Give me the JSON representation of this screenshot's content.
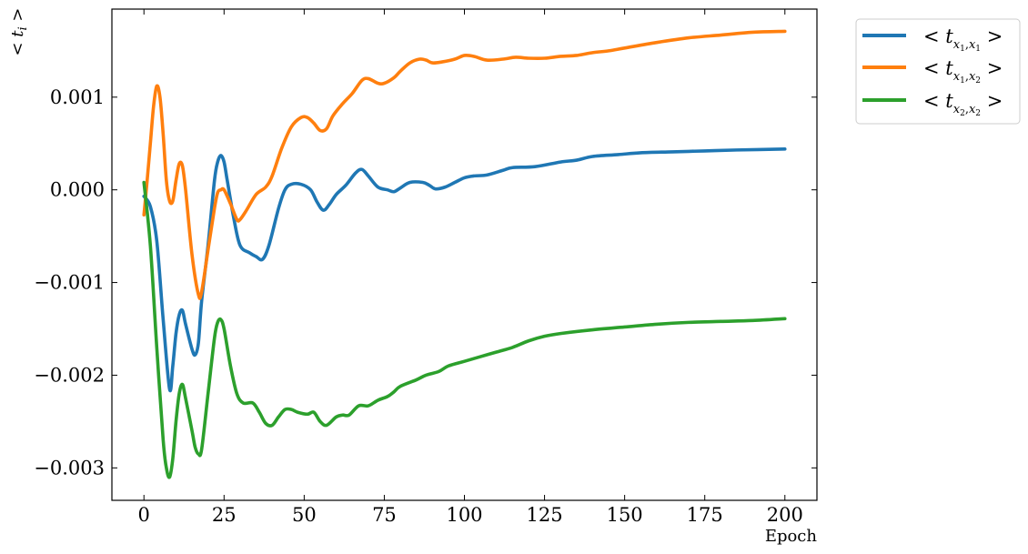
{
  "chart_data": {
    "type": "line",
    "xlabel": "Epoch",
    "ylabel": "< t_i >",
    "xlim": [
      -10,
      210
    ],
    "ylim": [
      -0.00335,
      0.00195
    ],
    "xticks": [
      0,
      25,
      50,
      75,
      100,
      125,
      150,
      175,
      200
    ],
    "yticks": [
      0.001,
      0.0,
      -0.001,
      -0.002,
      -0.003
    ],
    "xtick_labels": [
      "0",
      "25",
      "50",
      "75",
      "100",
      "125",
      "150",
      "175",
      "200"
    ],
    "ytick_labels": [
      "0.001",
      "0.000",
      "−0.001",
      "−0.002",
      "−0.003"
    ],
    "grid": false,
    "legend_position": "outside-top-right",
    "series": [
      {
        "name": "< t x1,x1 >",
        "color": "#1f77b4",
        "points": [
          [
            0,
            -7e-05
          ],
          [
            2,
            -0.00018
          ],
          [
            4,
            -0.00055
          ],
          [
            6,
            -0.0014
          ],
          [
            8,
            -0.00215
          ],
          [
            9,
            -0.0019
          ],
          [
            10,
            -0.00155
          ],
          [
            11,
            -0.00135
          ],
          [
            12,
            -0.0013
          ],
          [
            13,
            -0.00145
          ],
          [
            15,
            -0.00172
          ],
          [
            16,
            -0.00178
          ],
          [
            17,
            -0.00165
          ],
          [
            18,
            -0.0012
          ],
          [
            20,
            -0.0006
          ],
          [
            22,
            0.0001
          ],
          [
            23,
            0.0003
          ],
          [
            24,
            0.00037
          ],
          [
            25,
            0.0003
          ],
          [
            26,
            0.0001
          ],
          [
            28,
            -0.0003
          ],
          [
            30,
            -0.0006
          ],
          [
            33,
            -0.00068
          ],
          [
            35,
            -0.00072
          ],
          [
            37,
            -0.00075
          ],
          [
            39,
            -0.0006
          ],
          [
            42,
            -0.0002
          ],
          [
            44,
            0.0
          ],
          [
            46,
            6e-05
          ],
          [
            49,
            6e-05
          ],
          [
            52,
            0.0
          ],
          [
            54,
            -0.00013
          ],
          [
            56,
            -0.00022
          ],
          [
            58,
            -0.00015
          ],
          [
            60,
            -5e-05
          ],
          [
            63,
            5e-05
          ],
          [
            66,
            0.00018
          ],
          [
            68,
            0.00022
          ],
          [
            70,
            0.00015
          ],
          [
            73,
            3e-05
          ],
          [
            76,
            0.0
          ],
          [
            78,
            -2e-05
          ],
          [
            80,
            2e-05
          ],
          [
            83,
            8e-05
          ],
          [
            87,
            8e-05
          ],
          [
            89,
            5e-05
          ],
          [
            91,
            1e-05
          ],
          [
            94,
            3e-05
          ],
          [
            97,
            8e-05
          ],
          [
            100,
            0.00013
          ],
          [
            103,
            0.00015
          ],
          [
            107,
            0.00016
          ],
          [
            112,
            0.00021
          ],
          [
            115,
            0.00024
          ],
          [
            122,
            0.00025
          ],
          [
            130,
            0.0003
          ],
          [
            135,
            0.00032
          ],
          [
            140,
            0.00036
          ],
          [
            148,
            0.00038
          ],
          [
            155,
            0.0004
          ],
          [
            165,
            0.00041
          ],
          [
            175,
            0.00042
          ],
          [
            185,
            0.00043
          ],
          [
            200,
            0.00044
          ]
        ]
      },
      {
        "name": "< t x1,x2 >",
        "color": "#ff7f0e",
        "points": [
          [
            0,
            -0.00027
          ],
          [
            1,
            0.0001
          ],
          [
            2,
            0.0005
          ],
          [
            3,
            0.0009
          ],
          [
            4,
            0.00112
          ],
          [
            5,
            0.001
          ],
          [
            6,
            0.0006
          ],
          [
            7,
            0.0001
          ],
          [
            8,
            -0.00012
          ],
          [
            9,
            -0.00012
          ],
          [
            10,
            0.0001
          ],
          [
            11,
            0.00028
          ],
          [
            12,
            0.00026
          ],
          [
            13,
            0.0
          ],
          [
            15,
            -0.0007
          ],
          [
            17,
            -0.00113
          ],
          [
            18,
            -0.0011
          ],
          [
            20,
            -0.00065
          ],
          [
            22,
            -0.0002
          ],
          [
            23,
            -3e-05
          ],
          [
            24,
            0.0
          ],
          [
            25,
            0.0
          ],
          [
            27,
            -0.00015
          ],
          [
            29,
            -0.00032
          ],
          [
            30,
            -0.00032
          ],
          [
            32,
            -0.00022
          ],
          [
            35,
            -5e-05
          ],
          [
            38,
            3e-05
          ],
          [
            40,
            0.00015
          ],
          [
            43,
            0.00045
          ],
          [
            46,
            0.00068
          ],
          [
            49,
            0.00078
          ],
          [
            51,
            0.00078
          ],
          [
            53,
            0.00072
          ],
          [
            55,
            0.00064
          ],
          [
            57,
            0.00066
          ],
          [
            59,
            0.0008
          ],
          [
            62,
            0.00093
          ],
          [
            65,
            0.00104
          ],
          [
            68,
            0.00118
          ],
          [
            70,
            0.0012
          ],
          [
            73,
            0.00115
          ],
          [
            75,
            0.00115
          ],
          [
            78,
            0.00121
          ],
          [
            80,
            0.00128
          ],
          [
            83,
            0.00137
          ],
          [
            86,
            0.00141
          ],
          [
            88,
            0.0014
          ],
          [
            90,
            0.00137
          ],
          [
            93,
            0.00138
          ],
          [
            97,
            0.00141
          ],
          [
            100,
            0.00145
          ],
          [
            103,
            0.00144
          ],
          [
            107,
            0.0014
          ],
          [
            112,
            0.00141
          ],
          [
            116,
            0.00143
          ],
          [
            120,
            0.00142
          ],
          [
            125,
            0.00142
          ],
          [
            130,
            0.00144
          ],
          [
            135,
            0.00145
          ],
          [
            140,
            0.00148
          ],
          [
            145,
            0.0015
          ],
          [
            150,
            0.00153
          ],
          [
            160,
            0.00159
          ],
          [
            170,
            0.00164
          ],
          [
            180,
            0.00167
          ],
          [
            190,
            0.0017
          ],
          [
            200,
            0.00171
          ]
        ]
      },
      {
        "name": "< t x2,x2 >",
        "color": "#2ca02c",
        "points": [
          [
            0,
            8e-05
          ],
          [
            2,
            -0.0006
          ],
          [
            4,
            -0.0017
          ],
          [
            6,
            -0.0027
          ],
          [
            7,
            -0.003
          ],
          [
            8,
            -0.0031
          ],
          [
            9,
            -0.0029
          ],
          [
            10,
            -0.0025
          ],
          [
            11,
            -0.0022
          ],
          [
            12,
            -0.0021
          ],
          [
            13,
            -0.00225
          ],
          [
            15,
            -0.0026
          ],
          [
            16,
            -0.00278
          ],
          [
            17,
            -0.00285
          ],
          [
            18,
            -0.0028
          ],
          [
            20,
            -0.0022
          ],
          [
            22,
            -0.0016
          ],
          [
            23,
            -0.00143
          ],
          [
            24,
            -0.0014
          ],
          [
            25,
            -0.0015
          ],
          [
            27,
            -0.0019
          ],
          [
            29,
            -0.0022
          ],
          [
            31,
            -0.0023
          ],
          [
            34,
            -0.0023
          ],
          [
            36,
            -0.0024
          ],
          [
            38,
            -0.00252
          ],
          [
            40,
            -0.00254
          ],
          [
            42,
            -0.00245
          ],
          [
            44,
            -0.00237
          ],
          [
            46,
            -0.00237
          ],
          [
            48,
            -0.0024
          ],
          [
            51,
            -0.00242
          ],
          [
            53,
            -0.0024
          ],
          [
            55,
            -0.0025
          ],
          [
            57,
            -0.00254
          ],
          [
            60,
            -0.00245
          ],
          [
            62,
            -0.00243
          ],
          [
            64,
            -0.00243
          ],
          [
            67,
            -0.00233
          ],
          [
            70,
            -0.00233
          ],
          [
            73,
            -0.00227
          ],
          [
            76,
            -0.00223
          ],
          [
            78,
            -0.00218
          ],
          [
            80,
            -0.00212
          ],
          [
            85,
            -0.00205
          ],
          [
            88,
            -0.002
          ],
          [
            92,
            -0.00196
          ],
          [
            95,
            -0.0019
          ],
          [
            100,
            -0.00185
          ],
          [
            105,
            -0.0018
          ],
          [
            110,
            -0.00175
          ],
          [
            115,
            -0.0017
          ],
          [
            120,
            -0.00163
          ],
          [
            125,
            -0.00158
          ],
          [
            130,
            -0.00155
          ],
          [
            140,
            -0.00151
          ],
          [
            150,
            -0.00148
          ],
          [
            160,
            -0.00145
          ],
          [
            170,
            -0.00143
          ],
          [
            180,
            -0.00142
          ],
          [
            190,
            -0.00141
          ],
          [
            200,
            -0.00139
          ]
        ]
      }
    ]
  }
}
